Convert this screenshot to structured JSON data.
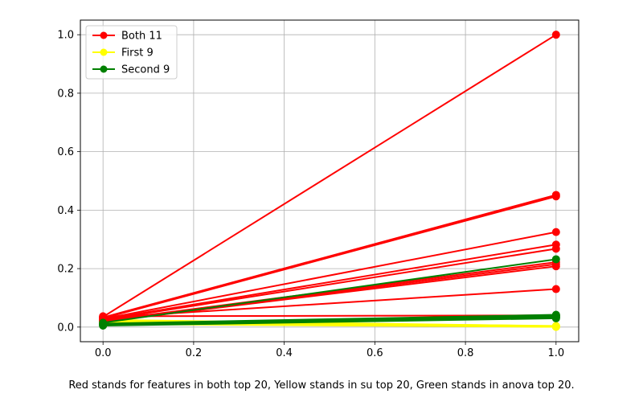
{
  "caption": "Red stands for features in both top 20, Yellow stands in su top 20, Green stands in anova top 20.",
  "chart_data": {
    "type": "line",
    "title": "",
    "xlabel": "",
    "ylabel": "",
    "xlim": [
      -0.05,
      1.05
    ],
    "ylim": [
      -0.05,
      1.05
    ],
    "xticks": [
      0.0,
      0.2,
      0.4,
      0.6,
      0.8,
      1.0
    ],
    "xtick_labels": [
      "0.0",
      "0.2",
      "0.4",
      "0.6",
      "0.8",
      "1.0"
    ],
    "yticks": [
      0.0,
      0.2,
      0.4,
      0.6,
      0.8,
      1.0
    ],
    "ytick_labels": [
      "0.0",
      "0.2",
      "0.4",
      "0.6",
      "0.8",
      "1.0"
    ],
    "grid": true,
    "legend_position": "top-left",
    "legend": [
      {
        "label": "Both 11",
        "color": "#ff0000"
      },
      {
        "label": "First 9",
        "color": "#ffff00"
      },
      {
        "label": "Second 9",
        "color": "#008000"
      }
    ],
    "series": [
      {
        "group": "Both 11",
        "color": "#ff0000",
        "x": [
          0,
          1
        ],
        "y": [
          0.035,
          1.0
        ]
      },
      {
        "group": "Both 11",
        "color": "#ff0000",
        "x": [
          0,
          1
        ],
        "y": [
          0.033,
          0.452
        ]
      },
      {
        "group": "Both 11",
        "color": "#ff0000",
        "x": [
          0,
          1
        ],
        "y": [
          0.03,
          0.447
        ]
      },
      {
        "group": "Both 11",
        "color": "#ff0000",
        "x": [
          0,
          1
        ],
        "y": [
          0.028,
          0.325
        ]
      },
      {
        "group": "Both 11",
        "color": "#ff0000",
        "x": [
          0,
          1
        ],
        "y": [
          0.026,
          0.282
        ]
      },
      {
        "group": "Both 11",
        "color": "#ff0000",
        "x": [
          0,
          1
        ],
        "y": [
          0.024,
          0.268
        ]
      },
      {
        "group": "Both 11",
        "color": "#ff0000",
        "x": [
          0,
          1
        ],
        "y": [
          0.022,
          0.222
        ]
      },
      {
        "group": "Both 11",
        "color": "#ff0000",
        "x": [
          0,
          1
        ],
        "y": [
          0.02,
          0.215
        ]
      },
      {
        "group": "Both 11",
        "color": "#ff0000",
        "x": [
          0,
          1
        ],
        "y": [
          0.018,
          0.208
        ]
      },
      {
        "group": "Both 11",
        "color": "#ff0000",
        "x": [
          0,
          1
        ],
        "y": [
          0.032,
          0.13
        ]
      },
      {
        "group": "Both 11",
        "color": "#ff0000",
        "x": [
          0,
          1
        ],
        "y": [
          0.037,
          0.04
        ]
      },
      {
        "group": "First 9",
        "color": "#ffff00",
        "x": [
          0,
          1
        ],
        "y": [
          0.025,
          0.003
        ]
      },
      {
        "group": "First 9",
        "color": "#ffff00",
        "x": [
          0,
          1
        ],
        "y": [
          0.022,
          0.002
        ]
      },
      {
        "group": "First 9",
        "color": "#ffff00",
        "x": [
          0,
          1
        ],
        "y": [
          0.02,
          0.004
        ]
      },
      {
        "group": "First 9",
        "color": "#ffff00",
        "x": [
          0,
          1
        ],
        "y": [
          0.018,
          0.001
        ]
      },
      {
        "group": "First 9",
        "color": "#ffff00",
        "x": [
          0,
          1
        ],
        "y": [
          0.016,
          0.003
        ]
      },
      {
        "group": "First 9",
        "color": "#ffff00",
        "x": [
          0,
          1
        ],
        "y": [
          0.015,
          0.002
        ]
      },
      {
        "group": "First 9",
        "color": "#ffff00",
        "x": [
          0,
          1
        ],
        "y": [
          0.013,
          0.001
        ]
      },
      {
        "group": "First 9",
        "color": "#ffff00",
        "x": [
          0,
          1
        ],
        "y": [
          0.012,
          0.002
        ]
      },
      {
        "group": "First 9",
        "color": "#ffff00",
        "x": [
          0,
          1
        ],
        "y": [
          0.01,
          0.001
        ]
      },
      {
        "group": "Second 9",
        "color": "#008000",
        "x": [
          0,
          1
        ],
        "y": [
          0.015,
          0.232
        ]
      },
      {
        "group": "Second 9",
        "color": "#008000",
        "x": [
          0,
          1
        ],
        "y": [
          0.012,
          0.042
        ]
      },
      {
        "group": "Second 9",
        "color": "#008000",
        "x": [
          0,
          1
        ],
        "y": [
          0.011,
          0.04
        ]
      },
      {
        "group": "Second 9",
        "color": "#008000",
        "x": [
          0,
          1
        ],
        "y": [
          0.01,
          0.038
        ]
      },
      {
        "group": "Second 9",
        "color": "#008000",
        "x": [
          0,
          1
        ],
        "y": [
          0.009,
          0.036
        ]
      },
      {
        "group": "Second 9",
        "color": "#008000",
        "x": [
          0,
          1
        ],
        "y": [
          0.008,
          0.035
        ]
      },
      {
        "group": "Second 9",
        "color": "#008000",
        "x": [
          0,
          1
        ],
        "y": [
          0.007,
          0.033
        ]
      },
      {
        "group": "Second 9",
        "color": "#008000",
        "x": [
          0,
          1
        ],
        "y": [
          0.006,
          0.032
        ]
      },
      {
        "group": "Second 9",
        "color": "#008000",
        "x": [
          0,
          1
        ],
        "y": [
          0.005,
          0.03
        ]
      }
    ]
  }
}
